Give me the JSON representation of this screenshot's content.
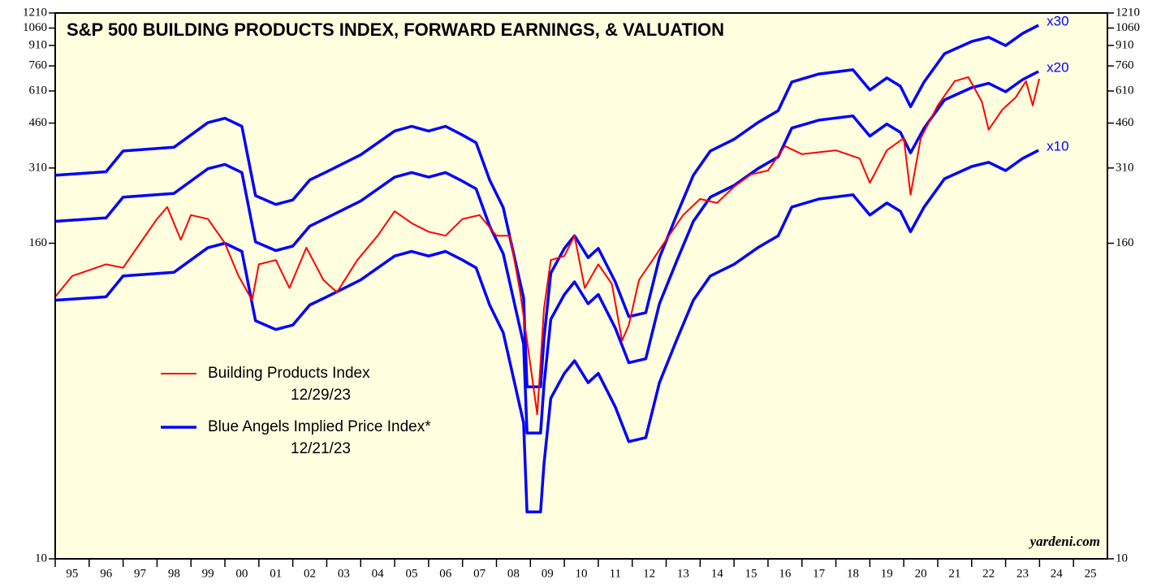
{
  "chart_data": {
    "type": "line",
    "title": "S&P 500 BUILDING PRODUCTS INDEX, FORWARD EARNINGS, & VALUATION",
    "log_scale": true,
    "ylim": [
      10,
      1210
    ],
    "yticks": [
      10,
      160,
      310,
      460,
      610,
      760,
      910,
      1060,
      1210
    ],
    "xlim": [
      1995,
      2026
    ],
    "xticks": [
      {
        "value": 1995.5,
        "label": "95"
      },
      {
        "value": 1996.5,
        "label": "96"
      },
      {
        "value": 1997.5,
        "label": "97"
      },
      {
        "value": 1998.5,
        "label": "98"
      },
      {
        "value": 1999.5,
        "label": "99"
      },
      {
        "value": 2000.5,
        "label": "00"
      },
      {
        "value": 2001.5,
        "label": "01"
      },
      {
        "value": 2002.5,
        "label": "02"
      },
      {
        "value": 2003.5,
        "label": "03"
      },
      {
        "value": 2004.5,
        "label": "04"
      },
      {
        "value": 2005.5,
        "label": "05"
      },
      {
        "value": 2006.5,
        "label": "06"
      },
      {
        "value": 2007.5,
        "label": "07"
      },
      {
        "value": 2008.5,
        "label": "08"
      },
      {
        "value": 2009.5,
        "label": "09"
      },
      {
        "value": 2010.5,
        "label": "10"
      },
      {
        "value": 2011.5,
        "label": "11"
      },
      {
        "value": 2012.5,
        "label": "12"
      },
      {
        "value": 2013.5,
        "label": "13"
      },
      {
        "value": 2014.5,
        "label": "14"
      },
      {
        "value": 2015.5,
        "label": "15"
      },
      {
        "value": 2016.5,
        "label": "16"
      },
      {
        "value": 2017.5,
        "label": "17"
      },
      {
        "value": 2018.5,
        "label": "18"
      },
      {
        "value": 2019.5,
        "label": "19"
      },
      {
        "value": 2020.5,
        "label": "20"
      },
      {
        "value": 2021.5,
        "label": "21"
      },
      {
        "value": 2022.5,
        "label": "22"
      },
      {
        "value": 2023.5,
        "label": "23"
      },
      {
        "value": 2024.5,
        "label": "24"
      },
      {
        "value": 2025.5,
        "label": "25"
      }
    ],
    "legend": [
      {
        "label": "Building Products Index",
        "date": "12/29/23",
        "color": "#ff0000"
      },
      {
        "label": "Blue Angels Implied Price Index*",
        "date": "12/21/23",
        "color": "#0000ff"
      }
    ],
    "source": "yardeni.com",
    "series": [
      {
        "name": "x10",
        "color": "#0000ff",
        "x": [
          1995.0,
          1996.5,
          1997.0,
          1998.5,
          1999.5,
          2000.0,
          2000.5,
          2000.9,
          2001.5,
          2002.0,
          2002.5,
          2003.0,
          2004.0,
          2005.0,
          2005.5,
          2006.0,
          2006.5,
          2007.0,
          2007.4,
          2007.8,
          2008.2,
          2008.8,
          2008.9,
          2009.3,
          2009.4,
          2009.6,
          2010.0,
          2010.3,
          2010.7,
          2011.0,
          2011.5,
          2011.9,
          2012.4,
          2012.8,
          2013.3,
          2013.8,
          2014.3,
          2015.0,
          2015.7,
          2016.3,
          2016.7,
          2017.5,
          2018.5,
          2019.0,
          2019.5,
          2019.9,
          2020.2,
          2020.6,
          2021.2,
          2022.0,
          2022.5,
          2023.0,
          2023.5,
          2023.97
        ],
        "values": [
          97,
          100,
          120,
          124,
          154,
          160,
          149,
          81,
          75,
          78,
          93,
          100,
          116,
          143,
          149,
          143,
          149,
          138,
          129,
          93,
          73,
          33,
          15.1,
          15.1,
          23,
          41,
          51,
          57,
          47,
          51,
          38,
          28,
          29,
          47,
          68,
          97,
          120,
          133,
          154,
          171,
          220,
          236,
          245,
          205,
          228,
          212,
          177,
          220,
          282,
          314,
          326,
          303,
          337,
          362
        ]
      },
      {
        "name": "x20",
        "color": "#0000ff",
        "x": [
          1995.0,
          1996.5,
          1997.0,
          1998.5,
          1999.5,
          2000.0,
          2000.5,
          2000.9,
          2001.5,
          2002.0,
          2002.5,
          2003.0,
          2004.0,
          2005.0,
          2005.5,
          2006.0,
          2006.5,
          2007.0,
          2007.4,
          2007.8,
          2008.2,
          2008.8,
          2008.9,
          2009.3,
          2009.4,
          2009.6,
          2010.0,
          2010.3,
          2010.7,
          2011.0,
          2011.5,
          2011.9,
          2012.4,
          2012.8,
          2013.3,
          2013.8,
          2014.3,
          2015.0,
          2015.7,
          2016.3,
          2016.7,
          2017.5,
          2018.5,
          2019.0,
          2019.5,
          2019.9,
          2020.2,
          2020.6,
          2021.2,
          2022.0,
          2022.5,
          2023.0,
          2023.5,
          2023.97
        ],
        "values": [
          194,
          200,
          240,
          248,
          308,
          320,
          298,
          162,
          150,
          156,
          186,
          200,
          232,
          286,
          298,
          286,
          298,
          276,
          258,
          186,
          146,
          66,
          30.2,
          30.2,
          46,
          82,
          102,
          114,
          94,
          102,
          76,
          56,
          58,
          94,
          136,
          194,
          240,
          266,
          308,
          342,
          440,
          472,
          490,
          410,
          456,
          424,
          354,
          440,
          564,
          628,
          652,
          606,
          674,
          724
        ]
      },
      {
        "name": "x30",
        "color": "#0000ff",
        "x": [
          1995.0,
          1996.5,
          1997.0,
          1998.5,
          1999.5,
          2000.0,
          2000.5,
          2000.9,
          2001.5,
          2002.0,
          2002.5,
          2003.0,
          2004.0,
          2005.0,
          2005.5,
          2006.0,
          2006.5,
          2007.0,
          2007.4,
          2007.8,
          2008.2,
          2008.8,
          2008.9,
          2009.3,
          2009.4,
          2009.6,
          2010.0,
          2010.3,
          2010.7,
          2011.0,
          2011.5,
          2011.9,
          2012.4,
          2012.8,
          2013.3,
          2013.8,
          2014.3,
          2015.0,
          2015.7,
          2016.3,
          2016.7,
          2017.5,
          2018.5,
          2019.0,
          2019.5,
          2019.9,
          2020.2,
          2020.6,
          2021.2,
          2022.0,
          2022.5,
          2023.0,
          2023.5,
          2023.97
        ],
        "values": [
          291,
          300,
          360,
          372,
          462,
          480,
          447,
          243,
          225,
          234,
          279,
          300,
          348,
          429,
          447,
          429,
          447,
          414,
          387,
          279,
          219,
          99,
          45.3,
          45.3,
          69,
          123,
          153,
          171,
          141,
          153,
          114,
          84,
          87,
          141,
          204,
          291,
          360,
          399,
          462,
          513,
          660,
          708,
          735,
          615,
          684,
          636,
          531,
          660,
          846,
          942,
          978,
          909,
          1011,
          1086
        ]
      },
      {
        "color": "#ff0000",
        "x": [
          1995.0,
          1995.5,
          1996.5,
          1997.0,
          1997.5,
          1998.0,
          1998.3,
          1998.7,
          1999.0,
          1999.5,
          2000.0,
          2000.4,
          2000.8,
          2001.0,
          2001.5,
          2001.9,
          2002.4,
          2002.9,
          2003.3,
          2003.9,
          2004.5,
          2005.0,
          2005.5,
          2006.0,
          2006.5,
          2007.0,
          2007.5,
          2008.0,
          2008.4,
          2008.7,
          2008.9,
          2009.2,
          2009.4,
          2009.6,
          2010.0,
          2010.3,
          2010.6,
          2011.0,
          2011.4,
          2011.7,
          2011.9,
          2012.2,
          2012.6,
          2013.0,
          2013.5,
          2014.0,
          2014.5,
          2015.0,
          2015.5,
          2016.0,
          2016.5,
          2017.0,
          2018.0,
          2018.7,
          2019.0,
          2019.5,
          2020.0,
          2020.2,
          2020.5,
          2021.0,
          2021.5,
          2021.9,
          2022.3,
          2022.5,
          2022.9,
          2023.3,
          2023.6,
          2023.8,
          2023.99
        ],
        "values": [
          100,
          120,
          133,
          129,
          160,
          198,
          220,
          165,
          205,
          198,
          160,
          120,
          97,
          133,
          138,
          108,
          154,
          116,
          104,
          138,
          171,
          212,
          191,
          177,
          171,
          198,
          205,
          171,
          171,
          104,
          68,
          35.6,
          90,
          138,
          143,
          171,
          108,
          133,
          112,
          68,
          78,
          116,
          138,
          165,
          205,
          236,
          228,
          263,
          293,
          303,
          376,
          350,
          362,
          337,
          272,
          362,
          403,
          245,
          403,
          537,
          665,
          689,
          556,
          434,
          517,
          577,
          665,
          537,
          679
        ]
      }
    ]
  }
}
